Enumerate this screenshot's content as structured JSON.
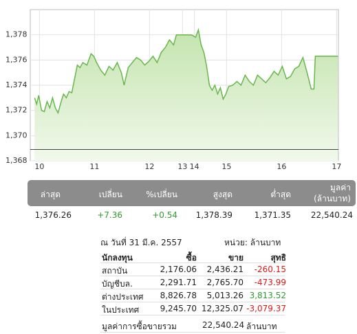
{
  "chart_data": {
    "type": "area",
    "color": "#66b84a",
    "fill": "#d4ecc4",
    "grid": true,
    "x": [
      -5.3,
      -3,
      -0.8,
      2.3,
      5.3,
      8.3,
      11.3,
      14.3,
      17.3,
      20.3,
      23.3,
      26.3,
      29.3,
      32.3,
      35.3,
      38.3,
      41.3,
      44.3,
      47.3,
      51.8,
      56.3,
      59.3,
      62.3,
      66.8,
      71.3,
      75.8,
      80.3,
      84.8,
      89.3,
      92.3,
      96.8,
      101.3,
      105.8,
      110.3,
      114.8,
      119.3,
      123.8,
      128.3,
      132.8,
      137.3,
      141.8,
      146.3,
      149.3,
      153.8,
      159.8,
      165.8,
      170.3,
      173.3,
      176.3,
      179.3,
      182.3,
      185.3,
      188.3,
      191.3,
      194.3,
      197.3,
      200.3,
      203.3,
      206.3,
      210.8,
      215.3,
      219.8,
      224.3,
      228.8,
      233.3,
      237.8,
      242.3,
      246.8,
      251.3,
      255.8,
      260.3,
      264.8,
      269.3,
      273.8,
      278.3,
      282.8,
      287.3,
      291.8,
      296.3,
      299.3,
      300.8,
      325.5
    ],
    "values": [
      1373.0,
      1372.5,
      1373.2,
      1372.0,
      1371.9,
      1372.7,
      1372.2,
      1373.0,
      1372.2,
      1371.8,
      1372.6,
      1373.3,
      1373.0,
      1373.5,
      1373.4,
      1374.5,
      1375.6,
      1375.4,
      1375.8,
      1375.6,
      1376.5,
      1376.3,
      1375.8,
      1375.2,
      1374.8,
      1375.5,
      1375.2,
      1375.8,
      1375.0,
      1374.0,
      1375.4,
      1375.8,
      1376.2,
      1376.0,
      1375.6,
      1375.9,
      1376.3,
      1375.8,
      1376.6,
      1377.0,
      1377.6,
      1377.2,
      1378.0,
      1378.0,
      1378.0,
      1378.0,
      1377.8,
      1378.4,
      1377.2,
      1376.6,
      1375.5,
      1374.0,
      1373.6,
      1374.0,
      1373.3,
      1373.8,
      1372.9,
      1373.3,
      1373.9,
      1374.0,
      1374.3,
      1374.0,
      1374.8,
      1374.3,
      1374.0,
      1374.8,
      1374.5,
      1374.2,
      1374.6,
      1375.1,
      1374.8,
      1375.5,
      1374.5,
      1374.7,
      1375.3,
      1375.5,
      1376.2,
      1375.0,
      1373.7,
      1373.7,
      1376.3,
      1376.3
    ],
    "reference": 1368.9,
    "xlim": [
      -10,
      326
    ],
    "ylim": [
      1368,
      1380
    ],
    "xticks": [
      {
        "value": 0,
        "label": "10"
      },
      {
        "value": 60,
        "label": "11"
      },
      {
        "value": 120,
        "label": "12"
      },
      {
        "value": 156,
        "label": "13"
      },
      {
        "value": 169,
        "label": "14"
      },
      {
        "value": 204,
        "label": "15"
      },
      {
        "value": 264,
        "label": "16"
      },
      {
        "value": 324,
        "label": "17"
      }
    ],
    "yticks": [
      {
        "value": 1368,
        "label": "1,368"
      },
      {
        "value": 1370,
        "label": "1,370"
      },
      {
        "value": 1372,
        "label": "1,372"
      },
      {
        "value": 1374,
        "label": "1,374"
      },
      {
        "value": 1376,
        "label": "1,376"
      },
      {
        "value": 1378,
        "label": "1,378"
      }
    ]
  },
  "stats": {
    "headers": [
      "ล่าสุด",
      "เปลี่ยน",
      "%เปลี่ยน",
      "สูงสุด",
      "ต่ำสุด",
      "มูลค่า",
      "(ล้านบาท)"
    ],
    "values": [
      "1,376.26",
      "+7.36",
      "+0.54",
      "1,378.39",
      "1,371.35",
      "22,540.24"
    ]
  },
  "investors": {
    "date": "ณ วันที่ 31 มี.ค. 2557",
    "unit": "หน่วย: ล้านบาท",
    "header": [
      "นักลงทุน",
      "ซื้อ",
      "ขาย",
      "สุทธิ"
    ],
    "rows": [
      [
        "สถาบัน",
        "2,176.06",
        "2,436.21",
        "-260.15"
      ],
      [
        "บัญชีบล.",
        "2,291.71",
        "2,765.70",
        "-473.99"
      ],
      [
        "ต่างประเทศ",
        "8,826.78",
        "5,013.26",
        "3,813.52"
      ],
      [
        "ในประเทศ",
        "9,245.70",
        "12,325.07",
        "-3,079.37"
      ]
    ],
    "total": {
      "label": "มูลค่าการซื้อขายรวม",
      "value": "22,540.24",
      "unit": "ล้านบาท"
    }
  }
}
